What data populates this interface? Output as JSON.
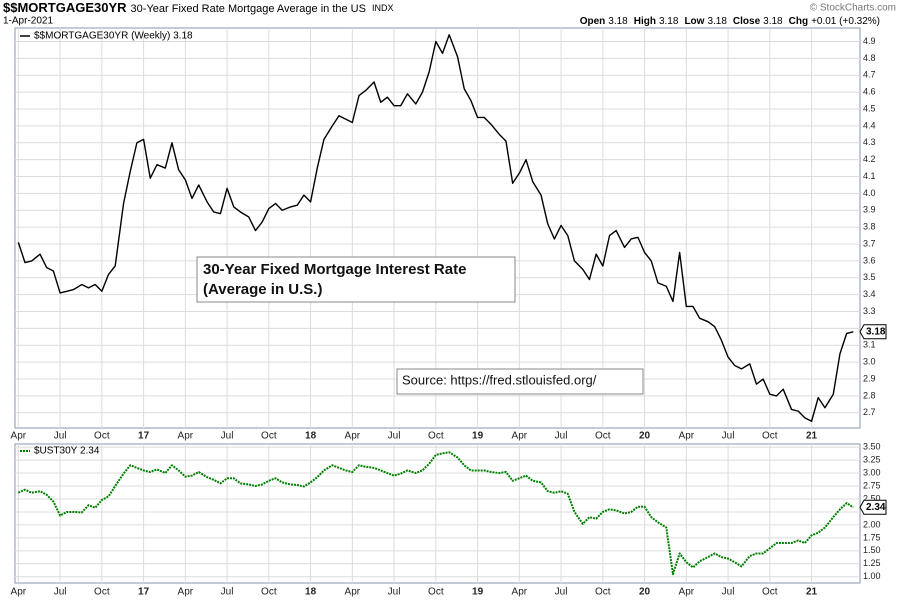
{
  "header": {
    "symbol": "$$MORTGAGE30YR",
    "description": "30-Year Fixed Rate Mortgage Average in the US",
    "exchange": "INDX",
    "date": "1-Apr-2021",
    "credit": "© StockCharts.com",
    "quote": [
      {
        "label": "Open",
        "value": "3.18"
      },
      {
        "label": "High",
        "value": "3.18"
      },
      {
        "label": "Low",
        "value": "3.18"
      },
      {
        "label": "Close",
        "value": "3.18"
      },
      {
        "label": "Chg",
        "value": "+0.01 (+0.32%)"
      }
    ]
  },
  "chart_data": [
    {
      "type": "line",
      "annotations": [
        {
          "lines": [
            "30-Year Fixed Mortgage Interest Rate",
            "(Average in U.S.)"
          ]
        },
        {
          "lines": [
            "Source: https://fred.stlouisfed.org/"
          ]
        }
      ],
      "x": [
        2016.25,
        2016.29,
        2016.33,
        2016.38,
        2016.42,
        2016.46,
        2016.5,
        2016.54,
        2016.58,
        2016.63,
        2016.67,
        2016.71,
        2016.75,
        2016.79,
        2016.83,
        2016.88,
        2016.92,
        2016.96,
        2017.0,
        2017.04,
        2017.08,
        2017.13,
        2017.17,
        2017.21,
        2017.25,
        2017.29,
        2017.33,
        2017.38,
        2017.42,
        2017.46,
        2017.5,
        2017.54,
        2017.58,
        2017.63,
        2017.67,
        2017.71,
        2017.75,
        2017.79,
        2017.83,
        2017.88,
        2017.92,
        2017.96,
        2018.0,
        2018.04,
        2018.08,
        2018.13,
        2018.17,
        2018.21,
        2018.25,
        2018.29,
        2018.33,
        2018.38,
        2018.42,
        2018.46,
        2018.5,
        2018.54,
        2018.58,
        2018.63,
        2018.67,
        2018.71,
        2018.75,
        2018.79,
        2018.83,
        2018.88,
        2018.92,
        2018.96,
        2019.0,
        2019.04,
        2019.08,
        2019.13,
        2019.17,
        2019.21,
        2019.25,
        2019.29,
        2019.33,
        2019.38,
        2019.42,
        2019.46,
        2019.5,
        2019.54,
        2019.58,
        2019.63,
        2019.67,
        2019.71,
        2019.75,
        2019.79,
        2019.83,
        2019.88,
        2019.92,
        2019.96,
        2020.0,
        2020.04,
        2020.08,
        2020.13,
        2020.17,
        2020.21,
        2020.25,
        2020.29,
        2020.33,
        2020.38,
        2020.42,
        2020.46,
        2020.5,
        2020.54,
        2020.58,
        2020.63,
        2020.67,
        2020.71,
        2020.75,
        2020.79,
        2020.83,
        2020.88,
        2020.92,
        2020.96,
        2021.0,
        2021.04,
        2021.08,
        2021.13,
        2021.17,
        2021.21,
        2021.25
      ],
      "series": [
        {
          "name": "$$MORTGAGE30YR (Weekly) 3.18",
          "color": "#000000",
          "values": [
            3.71,
            3.59,
            3.6,
            3.64,
            3.56,
            3.54,
            3.41,
            3.42,
            3.43,
            3.46,
            3.44,
            3.46,
            3.42,
            3.52,
            3.57,
            3.94,
            4.13,
            4.3,
            4.32,
            4.09,
            4.17,
            4.15,
            4.3,
            4.14,
            4.08,
            3.97,
            4.05,
            3.95,
            3.89,
            3.88,
            4.03,
            3.92,
            3.89,
            3.86,
            3.78,
            3.83,
            3.91,
            3.94,
            3.9,
            3.92,
            3.93,
            3.99,
            3.95,
            4.15,
            4.32,
            4.4,
            4.46,
            4.44,
            4.42,
            4.58,
            4.61,
            4.66,
            4.54,
            4.57,
            4.52,
            4.52,
            4.59,
            4.53,
            4.6,
            4.72,
            4.9,
            4.83,
            4.94,
            4.81,
            4.62,
            4.55,
            4.45,
            4.45,
            4.41,
            4.35,
            4.31,
            4.06,
            4.12,
            4.2,
            4.07,
            3.99,
            3.82,
            3.73,
            3.81,
            3.75,
            3.6,
            3.55,
            3.49,
            3.64,
            3.57,
            3.75,
            3.78,
            3.68,
            3.73,
            3.74,
            3.65,
            3.6,
            3.47,
            3.45,
            3.36,
            3.65,
            3.33,
            3.33,
            3.26,
            3.24,
            3.21,
            3.13,
            3.03,
            2.98,
            2.96,
            2.99,
            2.87,
            2.9,
            2.81,
            2.8,
            2.84,
            2.72,
            2.71,
            2.67,
            2.65,
            2.79,
            2.73,
            2.81,
            3.05,
            3.17,
            3.18
          ]
        }
      ],
      "xlim": [
        2016.23,
        2021.29
      ],
      "xticks": [
        {
          "value": 2016.25,
          "label": "Apr"
        },
        {
          "value": 2016.5,
          "label": "Jul"
        },
        {
          "value": 2016.75,
          "label": "Oct"
        },
        {
          "value": 2017,
          "label": "17"
        },
        {
          "value": 2017.25,
          "label": "Apr"
        },
        {
          "value": 2017.5,
          "label": "Jul"
        },
        {
          "value": 2017.75,
          "label": "Oct"
        },
        {
          "value": 2018,
          "label": "18"
        },
        {
          "value": 2018.25,
          "label": "Apr"
        },
        {
          "value": 2018.5,
          "label": "Jul"
        },
        {
          "value": 2018.75,
          "label": "Oct"
        },
        {
          "value": 2019,
          "label": "19"
        },
        {
          "value": 2019.25,
          "label": "Apr"
        },
        {
          "value": 2019.5,
          "label": "Jul"
        },
        {
          "value": 2019.75,
          "label": "Oct"
        },
        {
          "value": 2020,
          "label": "20"
        },
        {
          "value": 2020.25,
          "label": "Apr"
        },
        {
          "value": 2020.5,
          "label": "Jul"
        },
        {
          "value": 2020.75,
          "label": "Oct"
        },
        {
          "value": 2021,
          "label": "21"
        }
      ],
      "ylim": [
        2.61,
        4.98
      ],
      "yticks": [
        2.7,
        2.8,
        2.9,
        {
          "value": 3,
          "label": "3.0"
        },
        3.1,
        3.2,
        3.3,
        3.4,
        3.5,
        3.6,
        3.7,
        3.8,
        3.9,
        {
          "value": 4,
          "label": "4.0"
        },
        4.1,
        4.2,
        4.3,
        4.4,
        4.5,
        4.6,
        4.7,
        4.8,
        4.9
      ],
      "grid": true
    },
    {
      "type": "line",
      "x": [
        2016.25,
        2016.29,
        2016.33,
        2016.38,
        2016.42,
        2016.46,
        2016.5,
        2016.54,
        2016.58,
        2016.63,
        2016.67,
        2016.71,
        2016.75,
        2016.79,
        2016.83,
        2016.88,
        2016.92,
        2016.96,
        2017.0,
        2017.04,
        2017.08,
        2017.13,
        2017.17,
        2017.21,
        2017.25,
        2017.29,
        2017.33,
        2017.38,
        2017.42,
        2017.46,
        2017.5,
        2017.54,
        2017.58,
        2017.63,
        2017.67,
        2017.71,
        2017.75,
        2017.79,
        2017.83,
        2017.88,
        2017.92,
        2017.96,
        2018.0,
        2018.04,
        2018.08,
        2018.13,
        2018.17,
        2018.21,
        2018.25,
        2018.29,
        2018.33,
        2018.38,
        2018.42,
        2018.46,
        2018.5,
        2018.54,
        2018.58,
        2018.63,
        2018.67,
        2018.71,
        2018.75,
        2018.79,
        2018.83,
        2018.88,
        2018.92,
        2018.96,
        2019.0,
        2019.04,
        2019.08,
        2019.13,
        2019.17,
        2019.21,
        2019.25,
        2019.29,
        2019.33,
        2019.38,
        2019.42,
        2019.46,
        2019.5,
        2019.54,
        2019.58,
        2019.63,
        2019.67,
        2019.71,
        2019.75,
        2019.79,
        2019.83,
        2019.88,
        2019.92,
        2019.96,
        2020.0,
        2020.04,
        2020.08,
        2020.13,
        2020.17,
        2020.21,
        2020.25,
        2020.29,
        2020.33,
        2020.38,
        2020.42,
        2020.46,
        2020.5,
        2020.54,
        2020.58,
        2020.63,
        2020.67,
        2020.71,
        2020.75,
        2020.79,
        2020.83,
        2020.88,
        2020.92,
        2020.96,
        2021.0,
        2021.04,
        2021.08,
        2021.13,
        2021.17,
        2021.21,
        2021.25
      ],
      "series": [
        {
          "name": "$UST30Y 2.34",
          "color": "#008000",
          "values": [
            2.62,
            2.68,
            2.62,
            2.65,
            2.58,
            2.45,
            2.18,
            2.25,
            2.25,
            2.24,
            2.38,
            2.33,
            2.48,
            2.55,
            2.75,
            2.99,
            3.15,
            3.1,
            3.05,
            3.02,
            3.07,
            3.0,
            3.15,
            3.05,
            2.93,
            2.95,
            3.02,
            2.92,
            2.87,
            2.8,
            2.9,
            2.9,
            2.8,
            2.78,
            2.75,
            2.78,
            2.85,
            2.9,
            2.82,
            2.78,
            2.77,
            2.74,
            2.82,
            2.92,
            3.05,
            3.15,
            3.1,
            3.05,
            3.02,
            3.15,
            3.12,
            3.1,
            3.05,
            3.0,
            2.95,
            2.99,
            3.05,
            3.0,
            3.05,
            3.18,
            3.35,
            3.38,
            3.4,
            3.3,
            3.15,
            3.05,
            3.05,
            3.05,
            3.02,
            3.0,
            3.02,
            2.85,
            2.9,
            2.95,
            2.85,
            2.82,
            2.65,
            2.62,
            2.65,
            2.6,
            2.25,
            2.02,
            2.15,
            2.12,
            2.25,
            2.3,
            2.28,
            2.22,
            2.25,
            2.35,
            2.35,
            2.15,
            2.05,
            1.95,
            1.05,
            1.45,
            1.28,
            1.18,
            1.3,
            1.38,
            1.45,
            1.38,
            1.35,
            1.28,
            1.2,
            1.4,
            1.45,
            1.45,
            1.55,
            1.65,
            1.65,
            1.65,
            1.7,
            1.65,
            1.8,
            1.85,
            1.95,
            2.15,
            2.3,
            2.42,
            2.34
          ]
        }
      ],
      "xlim": [
        2016.23,
        2021.29
      ],
      "xticks": [
        {
          "value": 2016.25,
          "label": "Apr"
        },
        {
          "value": 2016.5,
          "label": "Jul"
        },
        {
          "value": 2016.75,
          "label": "Oct"
        },
        {
          "value": 2017,
          "label": "17"
        },
        {
          "value": 2017.25,
          "label": "Apr"
        },
        {
          "value": 2017.5,
          "label": "Jul"
        },
        {
          "value": 2017.75,
          "label": "Oct"
        },
        {
          "value": 2018,
          "label": "18"
        },
        {
          "value": 2018.25,
          "label": "Apr"
        },
        {
          "value": 2018.5,
          "label": "Jul"
        },
        {
          "value": 2018.75,
          "label": "Oct"
        },
        {
          "value": 2019,
          "label": "19"
        },
        {
          "value": 2019.25,
          "label": "Apr"
        },
        {
          "value": 2019.5,
          "label": "Jul"
        },
        {
          "value": 2019.75,
          "label": "Oct"
        },
        {
          "value": 2020,
          "label": "20"
        },
        {
          "value": 2020.25,
          "label": "Apr"
        },
        {
          "value": 2020.5,
          "label": "Jul"
        },
        {
          "value": 2020.75,
          "label": "Oct"
        },
        {
          "value": 2021,
          "label": "21"
        }
      ],
      "ylim": [
        0.88,
        3.56
      ],
      "yticks": [
        {
          "value": 1,
          "label": "1.00"
        },
        1.25,
        {
          "value": 1.5,
          "label": "1.50"
        },
        1.75,
        {
          "value": 2,
          "label": "2.00"
        },
        2.25,
        {
          "value": 2.5,
          "label": "2.50"
        },
        2.75,
        {
          "value": 3,
          "label": "3.00"
        },
        3.25,
        {
          "value": 3.5,
          "label": "3.50"
        }
      ],
      "grid": true
    }
  ]
}
